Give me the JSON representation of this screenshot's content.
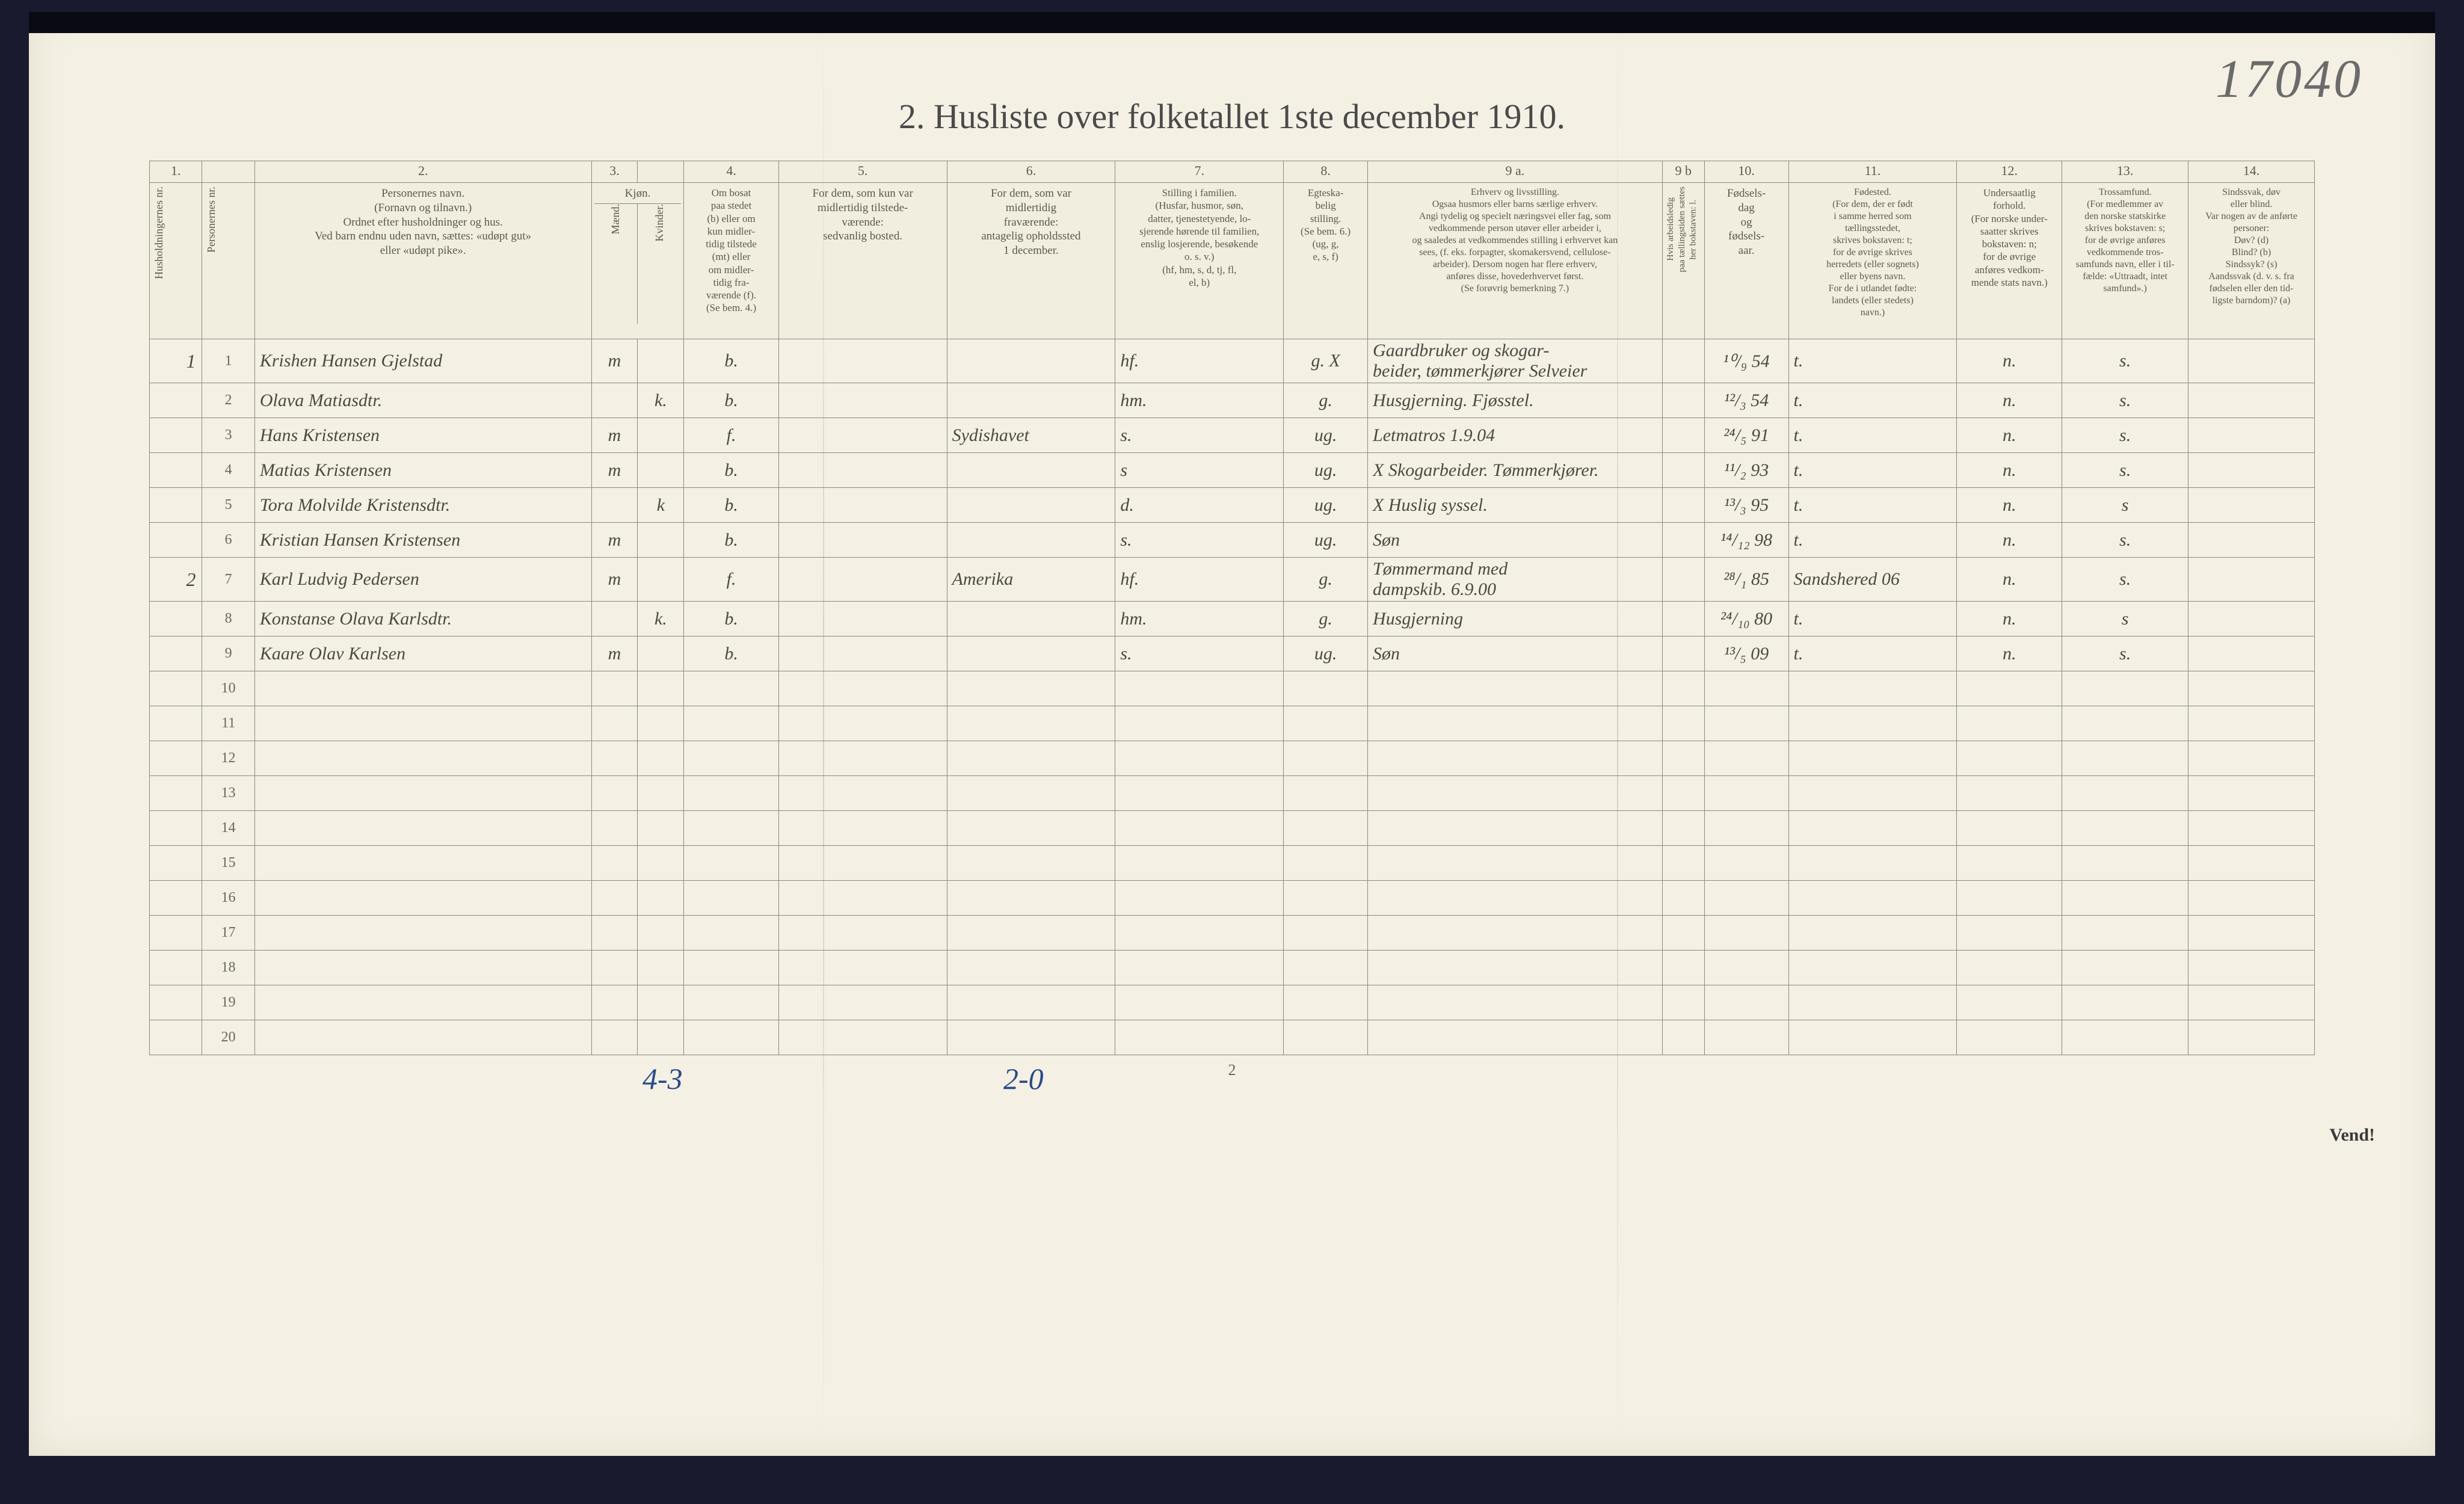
{
  "handwritten_page_number": "17040",
  "title": "2.  Husliste over folketallet 1ste december 1910.",
  "footer": {
    "left_mark": "4-3",
    "mid_mark": "2-0",
    "page_num": "2",
    "vend": "Vend!"
  },
  "colors": {
    "paper": "#f4f0e4",
    "ink_print": "#5a5a4a",
    "ink_handwriting": "#4a4a42",
    "ink_blue": "#2a4a8a",
    "border": "#8a8a7a"
  },
  "column_numbers": [
    "1.",
    "",
    "2.",
    "3.",
    "",
    "4.",
    "5.",
    "6.",
    "7.",
    "8.",
    "9 a.",
    "9 b",
    "10.",
    "11.",
    "12.",
    "13.",
    "14."
  ],
  "column_widths_pct": [
    2.5,
    2.5,
    16,
    2.2,
    2.2,
    4.5,
    8,
    8,
    8,
    4,
    14,
    2,
    4,
    8,
    5,
    6,
    6
  ],
  "headers": {
    "col1": "Husholdningernes nr.",
    "col1b": "Personernes nr.",
    "col2": "Personernes navn.\n(Fornavn og tilnavn.)\nOrdnet efter husholdninger og hus.\nVed barn endnu uden navn, sættes: «udøpt gut»\neller «udøpt pike».",
    "col3a": "Kjøn.",
    "col3a_sub1": "Mænd.",
    "col3a_sub2": "Kvinder.",
    "col4": "Om bosat\npaa stedet\n(b) eller om\nkun midler-\ntidig tilstede\n(mt) eller\nom midler-\ntidig fra-\nværende (f).\n(Se bem. 4.)",
    "col5": "For dem, som kun var\nmidlertidig tilstede-\nværende:\nsedvanlig bosted.",
    "col6": "For dem, som var\nmidlertidig\nfraværende:\nantagelig opholdssted\n1 december.",
    "col7": "Stilling i familien.\n(Husfar, husmor, søn,\ndatter, tjenestetyende, lo-\nsjerende hørende til familien,\nenslig losjerende, besøkende\no. s. v.)\n(hf, hm, s, d, tj, fl,\nel, b)",
    "col8": "Egteska-\nbelig\nstilling.\n(Se bem. 6.)\n(ug, g,\ne, s, f)",
    "col9a": "Erhverv og livsstilling.\nOgsaa husmors eller barns særlige erhverv.\nAngi tydelig og specielt næringsvei eller fag, som\nvedkommende person utøver eller arbeider i,\nog saaledes at vedkommendes stilling i erhvervet kan\nsees, (f. eks. forpagter, skomakersvend, cellulose-\narbeider). Dersom nogen har flere erhverv,\nanføres disse, hovederhvervet først.\n(Se forøvrig bemerkning 7.)",
    "col9b": "Hvis arbeidsledig\npaa tællingstiden sættes\nher bokstaven: l.",
    "col10": "Fødsels-\ndag\nog\nfødsels-\naar.",
    "col11": "Fødested.\n(For dem, der er født\ni samme herred som\ntællingsstedet,\nskrives bokstaven: t;\nfor de øvrige skrives\nherredets (eller sognets)\neller byens navn.\nFor de i utlandet fødte:\nlandets (eller stedets)\nnavn.)",
    "col12": "Undersaatlig\nforhold.\n(For norske under-\nsaatter skrives\nbokstaven: n;\nfor de øvrige\nanføres vedkom-\nmende stats navn.)",
    "col13": "Trossamfund.\n(For medlemmer av\nden norske statskirke\nskrives bokstaven: s;\nfor de øvrige anføres\nvedkommende tros-\nsamfunds navn, eller i til-\nfælde: «Uttraadt, intet\nsamfund».)",
    "col14": "Sindssvak, døv\neller blind.\nVar nogen av de anførte\npersoner:\nDøv?        (d)\nBlind?      (b)\nSindssyk?  (s)\nAandssvak (d. v. s. fra\nfødselen eller den tid-\nligste barndom)?  (a)"
  },
  "rows": [
    {
      "hh": "1",
      "pn": "1",
      "name": "Krishen Hansen Gjelstad",
      "sex_m": "m",
      "sex_k": "",
      "bosat": "b.",
      "c5": "",
      "c6": "",
      "c7": "hf.",
      "c8": "g. X",
      "c9a": "Gaardbruker og skogar-\nbeider, tømmerkjører   Selveier",
      "c9b": "",
      "c10": "¹⁰/₉ 54",
      "c11": "t.",
      "c12": "n.",
      "c13": "s.",
      "c14": ""
    },
    {
      "hh": "",
      "pn": "2",
      "name": "Olava Matiasdtr.",
      "sex_m": "",
      "sex_k": "k.",
      "bosat": "b.",
      "c5": "",
      "c6": "",
      "c7": "hm.",
      "c8": "g.",
      "c9a": "Husgjerning.     Fjøsstel.",
      "c9b": "",
      "c10": "¹²/₃ 54",
      "c11": "t.",
      "c12": "n.",
      "c13": "s.",
      "c14": ""
    },
    {
      "hh": "",
      "pn": "3",
      "name": "Hans Kristensen",
      "sex_m": "m",
      "sex_k": "",
      "bosat": "f.",
      "c5": "",
      "c6": "Sydishavet",
      "c7": "s.",
      "c8": "ug.",
      "c9a": "Letmatros 1.9.04",
      "c9b": "",
      "c10": "²⁴/₅ 91",
      "c11": "t.",
      "c12": "n.",
      "c13": "s.",
      "c14": ""
    },
    {
      "hh": "",
      "pn": "4",
      "name": "Matias Kristensen",
      "sex_m": "m",
      "sex_k": "",
      "bosat": "b.",
      "c5": "",
      "c6": "",
      "c7": "s",
      "c8": "ug.",
      "c9a": "X  Skogarbeider.  Tømmerkjører.",
      "c9b": "",
      "c10": "¹¹/₂ 93",
      "c11": "t.",
      "c12": "n.",
      "c13": "s.",
      "c14": ""
    },
    {
      "hh": "",
      "pn": "5",
      "name": "Tora Molvilde Kristensdtr.",
      "sex_m": "",
      "sex_k": "k",
      "bosat": "b.",
      "c5": "",
      "c6": "",
      "c7": "d.",
      "c8": "ug.",
      "c9a": "X  Huslig syssel.",
      "c9b": "",
      "c10": "¹³/₃ 95",
      "c11": "t.",
      "c12": "n.",
      "c13": "s",
      "c14": ""
    },
    {
      "hh": "",
      "pn": "6",
      "name": "Kristian Hansen Kristensen",
      "sex_m": "m",
      "sex_k": "",
      "bosat": "b.",
      "c5": "",
      "c6": "",
      "c7": "s.",
      "c8": "ug.",
      "c9a": "Søn",
      "c9b": "",
      "c10": "¹⁴/₁₂ 98",
      "c11": "t.",
      "c12": "n.",
      "c13": "s.",
      "c14": ""
    },
    {
      "hh": "2",
      "pn": "7",
      "name": "Karl Ludvig Pedersen",
      "sex_m": "m",
      "sex_k": "",
      "bosat": "f.",
      "c5": "",
      "c6": "Amerika",
      "c7": "hf.",
      "c8": "g.",
      "c9a": "Tømmermand med\ndampskib.  6.9.00",
      "c9b": "",
      "c10": "²⁸/₁ 85",
      "c11": "Sandshered    06",
      "c12": "n.",
      "c13": "s.",
      "c14": ""
    },
    {
      "hh": "",
      "pn": "8",
      "name": "Konstanse Olava Karlsdtr.",
      "sex_m": "",
      "sex_k": "k.",
      "bosat": "b.",
      "c5": "",
      "c6": "",
      "c7": "hm.",
      "c8": "g.",
      "c9a": "Husgjerning",
      "c9b": "",
      "c10": "²⁴/₁₀ 80",
      "c11": "t.",
      "c12": "n.",
      "c13": "s",
      "c14": ""
    },
    {
      "hh": "",
      "pn": "9",
      "name": "Kaare Olav Karlsen",
      "sex_m": "m",
      "sex_k": "",
      "bosat": "b.",
      "c5": "",
      "c6": "",
      "c7": "s.",
      "c8": "ug.",
      "c9a": "Søn",
      "c9b": "",
      "c10": "¹³/₅ 09",
      "c11": "t.",
      "c12": "n.",
      "c13": "s.",
      "c14": ""
    },
    {
      "hh": "",
      "pn": "10",
      "name": "",
      "sex_m": "",
      "sex_k": "",
      "bosat": "",
      "c5": "",
      "c6": "",
      "c7": "",
      "c8": "",
      "c9a": "",
      "c9b": "",
      "c10": "",
      "c11": "",
      "c12": "",
      "c13": "",
      "c14": ""
    },
    {
      "hh": "",
      "pn": "11",
      "name": "",
      "sex_m": "",
      "sex_k": "",
      "bosat": "",
      "c5": "",
      "c6": "",
      "c7": "",
      "c8": "",
      "c9a": "",
      "c9b": "",
      "c10": "",
      "c11": "",
      "c12": "",
      "c13": "",
      "c14": ""
    },
    {
      "hh": "",
      "pn": "12",
      "name": "",
      "sex_m": "",
      "sex_k": "",
      "bosat": "",
      "c5": "",
      "c6": "",
      "c7": "",
      "c8": "",
      "c9a": "",
      "c9b": "",
      "c10": "",
      "c11": "",
      "c12": "",
      "c13": "",
      "c14": ""
    },
    {
      "hh": "",
      "pn": "13",
      "name": "",
      "sex_m": "",
      "sex_k": "",
      "bosat": "",
      "c5": "",
      "c6": "",
      "c7": "",
      "c8": "",
      "c9a": "",
      "c9b": "",
      "c10": "",
      "c11": "",
      "c12": "",
      "c13": "",
      "c14": ""
    },
    {
      "hh": "",
      "pn": "14",
      "name": "",
      "sex_m": "",
      "sex_k": "",
      "bosat": "",
      "c5": "",
      "c6": "",
      "c7": "",
      "c8": "",
      "c9a": "",
      "c9b": "",
      "c10": "",
      "c11": "",
      "c12": "",
      "c13": "",
      "c14": ""
    },
    {
      "hh": "",
      "pn": "15",
      "name": "",
      "sex_m": "",
      "sex_k": "",
      "bosat": "",
      "c5": "",
      "c6": "",
      "c7": "",
      "c8": "",
      "c9a": "",
      "c9b": "",
      "c10": "",
      "c11": "",
      "c12": "",
      "c13": "",
      "c14": ""
    },
    {
      "hh": "",
      "pn": "16",
      "name": "",
      "sex_m": "",
      "sex_k": "",
      "bosat": "",
      "c5": "",
      "c6": "",
      "c7": "",
      "c8": "",
      "c9a": "",
      "c9b": "",
      "c10": "",
      "c11": "",
      "c12": "",
      "c13": "",
      "c14": ""
    },
    {
      "hh": "",
      "pn": "17",
      "name": "",
      "sex_m": "",
      "sex_k": "",
      "bosat": "",
      "c5": "",
      "c6": "",
      "c7": "",
      "c8": "",
      "c9a": "",
      "c9b": "",
      "c10": "",
      "c11": "",
      "c12": "",
      "c13": "",
      "c14": ""
    },
    {
      "hh": "",
      "pn": "18",
      "name": "",
      "sex_m": "",
      "sex_k": "",
      "bosat": "",
      "c5": "",
      "c6": "",
      "c7": "",
      "c8": "",
      "c9a": "",
      "c9b": "",
      "c10": "",
      "c11": "",
      "c12": "",
      "c13": "",
      "c14": ""
    },
    {
      "hh": "",
      "pn": "19",
      "name": "",
      "sex_m": "",
      "sex_k": "",
      "bosat": "",
      "c5": "",
      "c6": "",
      "c7": "",
      "c8": "",
      "c9a": "",
      "c9b": "",
      "c10": "",
      "c11": "",
      "c12": "",
      "c13": "",
      "c14": ""
    },
    {
      "hh": "",
      "pn": "20",
      "name": "",
      "sex_m": "",
      "sex_k": "",
      "bosat": "",
      "c5": "",
      "c6": "",
      "c7": "",
      "c8": "",
      "c9a": "",
      "c9b": "",
      "c10": "",
      "c11": "",
      "c12": "",
      "c13": "",
      "c14": ""
    }
  ]
}
